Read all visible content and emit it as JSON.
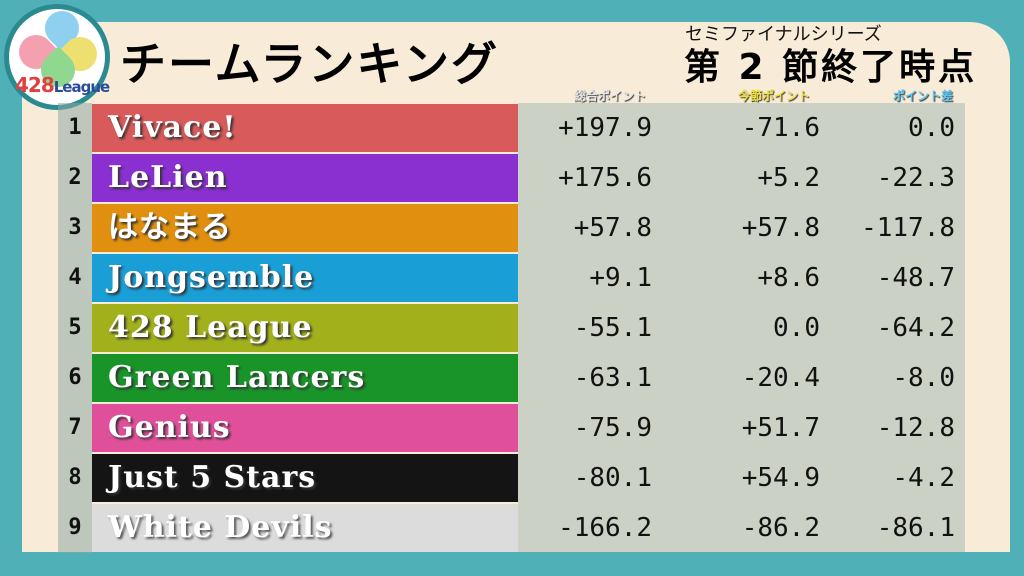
{
  "logo": {
    "text_number": "428",
    "text_word": "League"
  },
  "header": {
    "title": "チームランキング",
    "series": "セミファイナルシリーズ",
    "stage": "第 2 節終了時点"
  },
  "columns": {
    "total": "総合ポイント",
    "current": "今節ポイント",
    "diff": "ポイント差"
  },
  "column_colors": {
    "total": "#e8e8e8",
    "current": "#f0e040",
    "diff": "#60c8f0"
  },
  "rows": [
    {
      "rank": "1",
      "team": "Vivace!",
      "total": "+197.9",
      "current": "-71.6",
      "diff": "0.0",
      "color": "#d85a5a"
    },
    {
      "rank": "2",
      "team": "LeLien",
      "total": "+175.6",
      "current": "+5.2",
      "diff": "-22.3",
      "color": "#8a2fd0"
    },
    {
      "rank": "3",
      "team": "はなまる",
      "total": "+57.8",
      "current": "+57.8",
      "diff": "-117.8",
      "color": "#e0900e"
    },
    {
      "rank": "4",
      "team": "Jongsemble",
      "total": "+9.1",
      "current": "+8.6",
      "diff": "-48.7",
      "color": "#1a9ed6"
    },
    {
      "rank": "5",
      "team": "428 League",
      "total": "-55.1",
      "current": "0.0",
      "diff": "-64.2",
      "color": "#a2b01c"
    },
    {
      "rank": "6",
      "team": "Green Lancers",
      "total": "-63.1",
      "current": "-20.4",
      "diff": "-8.0",
      "color": "#189428"
    },
    {
      "rank": "7",
      "team": "Genius",
      "total": "-75.9",
      "current": "+51.7",
      "diff": "-12.8",
      "color": "#e0509a"
    },
    {
      "rank": "8",
      "team": "Just 5 Stars",
      "total": "-80.1",
      "current": "+54.9",
      "diff": "-4.2",
      "color": "#141414"
    },
    {
      "rank": "9",
      "team": "White Devils",
      "total": "-166.2",
      "current": "-86.2",
      "diff": "-86.1",
      "color": "#dcdcdc"
    }
  ]
}
